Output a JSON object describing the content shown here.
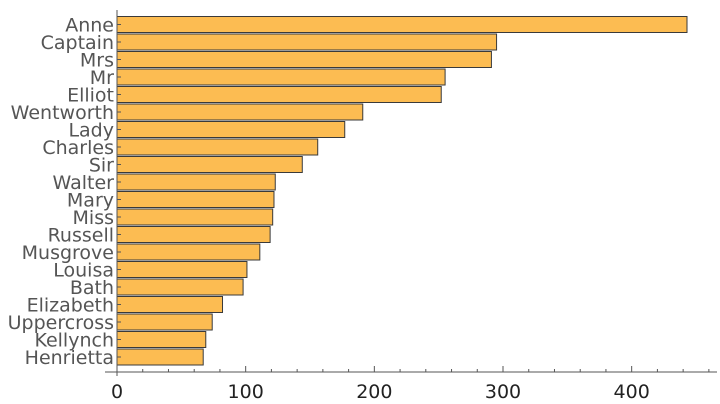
{
  "chart_data": {
    "type": "bar",
    "orientation": "horizontal",
    "categories": [
      "Anne",
      "Captain",
      "Mrs",
      "Mr",
      "Elliot",
      "Wentworth",
      "Lady",
      "Charles",
      "Sir",
      "Walter",
      "Mary",
      "Miss",
      "Russell",
      "Musgrove",
      "Louisa",
      "Bath",
      "Elizabeth",
      "Uppercross",
      "Kellynch",
      "Henrietta"
    ],
    "values": [
      443,
      295,
      291,
      255,
      252,
      191,
      177,
      156,
      144,
      123,
      122,
      121,
      119,
      111,
      101,
      98,
      82,
      74,
      69,
      67
    ],
    "title": "",
    "xlabel": "",
    "ylabel": "",
    "xlim": [
      0,
      470
    ],
    "xticks": [
      0,
      100,
      200,
      300,
      400
    ],
    "xtick_labels": [
      "0",
      "100",
      "200",
      "300",
      "400"
    ],
    "grid": false,
    "colors": {
      "bar_fill": "#fcbc52",
      "bar_stroke": "#3a3a3a",
      "axis": "#555555",
      "category_text": "#555555",
      "tick_text": "#222222"
    }
  }
}
